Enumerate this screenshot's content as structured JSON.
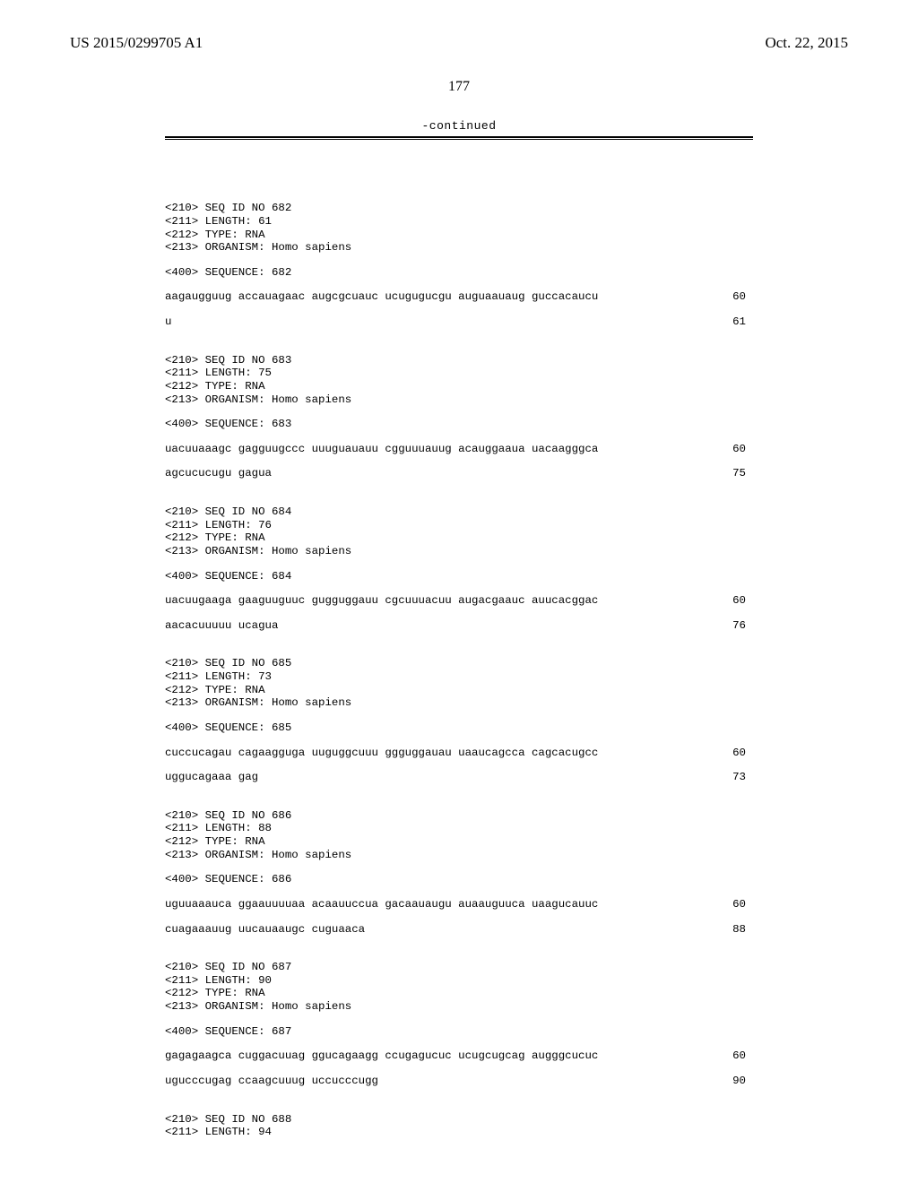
{
  "header": {
    "pub_number": "US 2015/0299705 A1",
    "pub_date": "Oct. 22, 2015",
    "page_number": "177",
    "continued_label": "-continued"
  },
  "sequences": [
    {
      "id": "682",
      "length": "61",
      "type": "RNA",
      "organism": "Homo sapiens",
      "lines": [
        {
          "text": "aagaugguug accauagaac augcgcuauc ucugugucgu auguaauaug guccacaucu",
          "num": "60"
        },
        {
          "text": "u",
          "num": "61"
        }
      ]
    },
    {
      "id": "683",
      "length": "75",
      "type": "RNA",
      "organism": "Homo sapiens",
      "lines": [
        {
          "text": "uacuuaaagc gagguugccc uuuguauauu cgguuuauug acauggaaua uacaagggca",
          "num": "60"
        },
        {
          "text": "agcucucugu gagua",
          "num": "75"
        }
      ]
    },
    {
      "id": "684",
      "length": "76",
      "type": "RNA",
      "organism": "Homo sapiens",
      "lines": [
        {
          "text": "uacuugaaga gaaguuguuc gugguggauu cgcuuuacuu augacgaauc auucacggac",
          "num": "60"
        },
        {
          "text": "aacacuuuuu ucagua",
          "num": "76"
        }
      ]
    },
    {
      "id": "685",
      "length": "73",
      "type": "RNA",
      "organism": "Homo sapiens",
      "lines": [
        {
          "text": "cuccucagau cagaagguga uuguggcuuu ggguggauau uaaucagcca cagcacugcc",
          "num": "60"
        },
        {
          "text": "uggucagaaa gag",
          "num": "73"
        }
      ]
    },
    {
      "id": "686",
      "length": "88",
      "type": "RNA",
      "organism": "Homo sapiens",
      "lines": [
        {
          "text": "uguuaaauca ggaauuuuaa acaauuccua gacaauaugu auaauguuca uaagucauuc",
          "num": "60"
        },
        {
          "text": "cuagaaauug uucauaaugc cuguaaca",
          "num": "88"
        }
      ]
    },
    {
      "id": "687",
      "length": "90",
      "type": "RNA",
      "organism": "Homo sapiens",
      "lines": [
        {
          "text": "gagagaagca cuggacuuag ggucagaagg ccugagucuc ucugcugcag augggcucuc",
          "num": "60"
        },
        {
          "text": "ugucccugag ccaagcuuug uccucccugg",
          "num": "90"
        }
      ]
    }
  ],
  "trailing": {
    "id": "688",
    "length": "94"
  }
}
